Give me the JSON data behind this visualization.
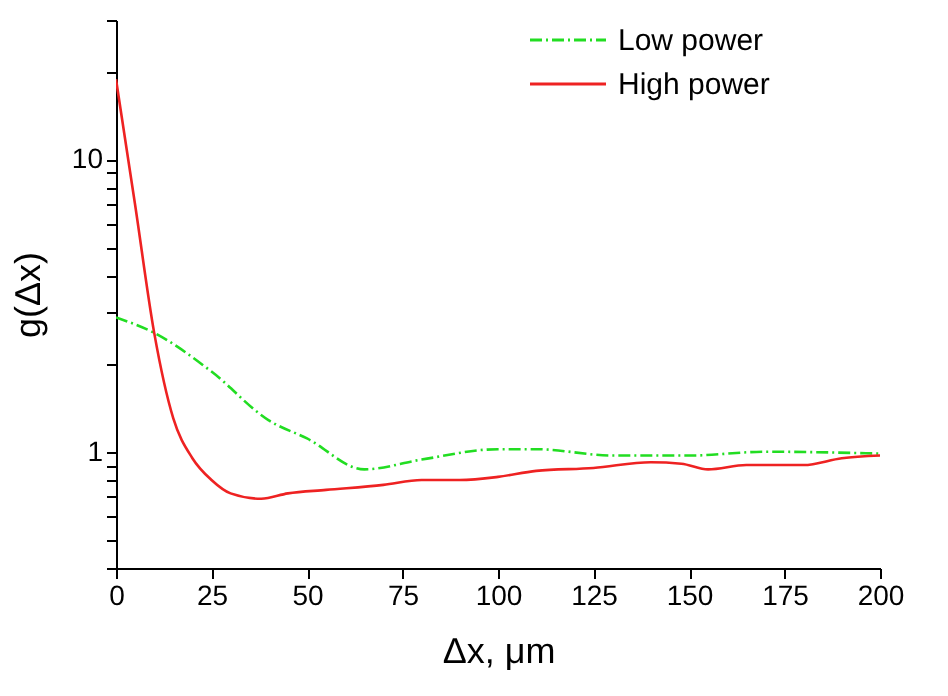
{
  "chart_data": {
    "type": "line",
    "xlabel": "Δx, μm",
    "ylabel": "g(Δx)",
    "log": "y",
    "grid": false,
    "legend": "top right",
    "marker": "none",
    "xlim": [
      0,
      200
    ],
    "xticks": [
      0,
      25,
      50,
      75,
      100,
      125,
      150,
      175,
      200
    ],
    "ylim": [
      0.4,
      30
    ],
    "yticks": [
      {
        "value": 0.4,
        "label": null
      },
      {
        "value": 0.5,
        "label": null
      },
      {
        "value": 0.6,
        "label": null
      },
      {
        "value": 0.7,
        "label": null
      },
      {
        "value": 0.8,
        "label": null
      },
      {
        "value": 0.9,
        "label": null
      },
      1,
      {
        "value": 2,
        "label": null
      },
      {
        "value": 3,
        "label": null
      },
      {
        "value": 4,
        "label": null
      },
      {
        "value": 5,
        "label": null
      },
      {
        "value": 6,
        "label": null
      },
      {
        "value": 7,
        "label": null
      },
      {
        "value": 8,
        "label": null
      },
      {
        "value": 9,
        "label": null
      },
      10,
      {
        "value": 20,
        "label": null
      },
      {
        "value": 30,
        "label": null
      }
    ],
    "series": [
      {
        "name": "Low power",
        "color": "#22dd22",
        "line_style": "dashdot",
        "x": [
          0,
          10,
          25,
          40,
          50,
          65,
          80,
          100,
          110,
          130,
          150,
          170,
          200
        ],
        "values": [
          2.88,
          2.55,
          1.88,
          1.28,
          1.11,
          0.87,
          0.94,
          1.02,
          1.02,
          0.97,
          0.97,
          1.0,
          0.985
        ]
      },
      {
        "name": "High power",
        "color": "#ee2222",
        "line_style": "solid",
        "x": [
          0,
          5,
          10,
          15,
          20,
          25,
          30,
          38,
          45,
          55,
          70,
          80,
          90,
          100,
          110,
          125,
          140,
          148,
          155,
          165,
          180,
          190,
          200
        ],
        "values": [
          18.8,
          7.0,
          2.55,
          1.3,
          0.95,
          0.8,
          0.72,
          0.69,
          0.72,
          0.74,
          0.77,
          0.8,
          0.8,
          0.82,
          0.86,
          0.88,
          0.92,
          0.91,
          0.87,
          0.9,
          0.9,
          0.95,
          0.97
        ]
      }
    ]
  }
}
